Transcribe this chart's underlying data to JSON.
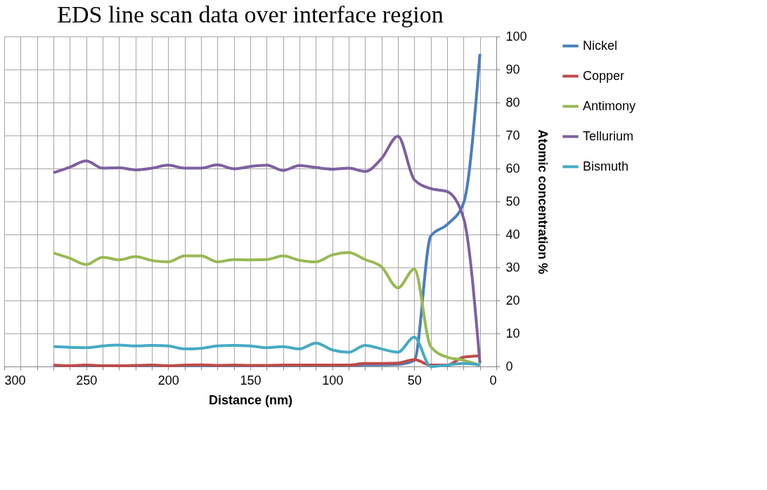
{
  "chart_data": {
    "type": "line",
    "title": "EDS line scan data over interface region",
    "xlabel": "Distance (nm)",
    "ylabel": "Atomic concentration %",
    "x": [
      270,
      260,
      250,
      240,
      230,
      220,
      210,
      200,
      190,
      180,
      170,
      160,
      150,
      140,
      130,
      120,
      110,
      100,
      90,
      80,
      70,
      60,
      50,
      40,
      30,
      20,
      10
    ],
    "series": [
      {
        "name": "Nickel",
        "color": "#4a7ebb",
        "values": [
          0.2,
          0.2,
          0.2,
          0.2,
          0.2,
          0.2,
          0.2,
          0.2,
          0.2,
          0.2,
          0.2,
          0.2,
          0.2,
          0.2,
          0.2,
          0.3,
          0.3,
          0.3,
          0.3,
          0.5,
          0.5,
          0.6,
          1.8,
          39.5,
          43,
          49.5,
          94.7
        ]
      },
      {
        "name": "Copper",
        "color": "#be4b48",
        "values": [
          0.4,
          0.2,
          0.4,
          0.2,
          0.2,
          0.3,
          0.4,
          0.2,
          0.4,
          0.5,
          0.3,
          0.4,
          0.3,
          0.3,
          0.4,
          0.4,
          0.4,
          0.4,
          0.4,
          0.9,
          0.9,
          1.0,
          2.1,
          0.4,
          0.4,
          2.8,
          3.2
        ]
      },
      {
        "name": "Antimony",
        "color": "#98b954",
        "values": [
          34.4,
          32.8,
          30.9,
          33.1,
          32.3,
          33.3,
          32.1,
          31.7,
          33.5,
          33.5,
          31.7,
          32.4,
          32.3,
          32.4,
          33.5,
          32.2,
          31.7,
          33.8,
          34.5,
          32.4,
          30.2,
          23.8,
          29.5,
          6,
          2.8,
          1.9,
          0.4
        ]
      },
      {
        "name": "Tellurium",
        "color": "#7d60a0",
        "values": [
          58.7,
          60.4,
          62.3,
          60.1,
          60.2,
          59.6,
          60.1,
          61,
          60.1,
          60.1,
          61.1,
          59.9,
          60.6,
          61,
          59.4,
          60.9,
          60.3,
          59.8,
          60.1,
          59.1,
          63,
          69.8,
          56.6,
          53.9,
          53,
          45,
          1
        ]
      },
      {
        "name": "Bismuth",
        "color": "#46aac5",
        "values": [
          6,
          5.8,
          5.7,
          6.2,
          6.5,
          6.2,
          6.4,
          6.2,
          5.3,
          5.5,
          6.2,
          6.4,
          6.2,
          5.7,
          6,
          5.3,
          7.1,
          5,
          4.3,
          6.4,
          5.3,
          4.3,
          8.9,
          0,
          0.4,
          0.9,
          0.4
        ]
      }
    ],
    "xlim": [
      300,
      0
    ],
    "xticks": [
      300,
      {
        "value": 290,
        "label": null
      },
      {
        "value": 280,
        "label": null
      },
      {
        "value": 270,
        "label": null
      },
      {
        "value": 260,
        "label": null
      },
      250,
      {
        "value": 240,
        "label": null
      },
      {
        "value": 230,
        "label": null
      },
      {
        "value": 220,
        "label": null
      },
      {
        "value": 210,
        "label": null
      },
      200,
      {
        "value": 190,
        "label": null
      },
      {
        "value": 180,
        "label": null
      },
      {
        "value": 170,
        "label": null
      },
      {
        "value": 160,
        "label": null
      },
      150,
      {
        "value": 140,
        "label": null
      },
      {
        "value": 130,
        "label": null
      },
      {
        "value": 120,
        "label": null
      },
      {
        "value": 110,
        "label": null
      },
      100,
      {
        "value": 90,
        "label": null
      },
      {
        "value": 80,
        "label": null
      },
      {
        "value": 70,
        "label": null
      },
      {
        "value": 60,
        "label": null
      },
      50,
      {
        "value": 40,
        "label": null
      },
      {
        "value": 30,
        "label": null
      },
      {
        "value": 20,
        "label": null
      },
      {
        "value": 10,
        "label": null
      },
      0
    ],
    "ylim": [
      0,
      100
    ],
    "yticks": [
      0,
      10,
      20,
      30,
      40,
      50,
      60,
      70,
      80,
      90,
      100
    ],
    "grid": true,
    "legend": "right",
    "marker": "none",
    "line_style": "solid"
  }
}
